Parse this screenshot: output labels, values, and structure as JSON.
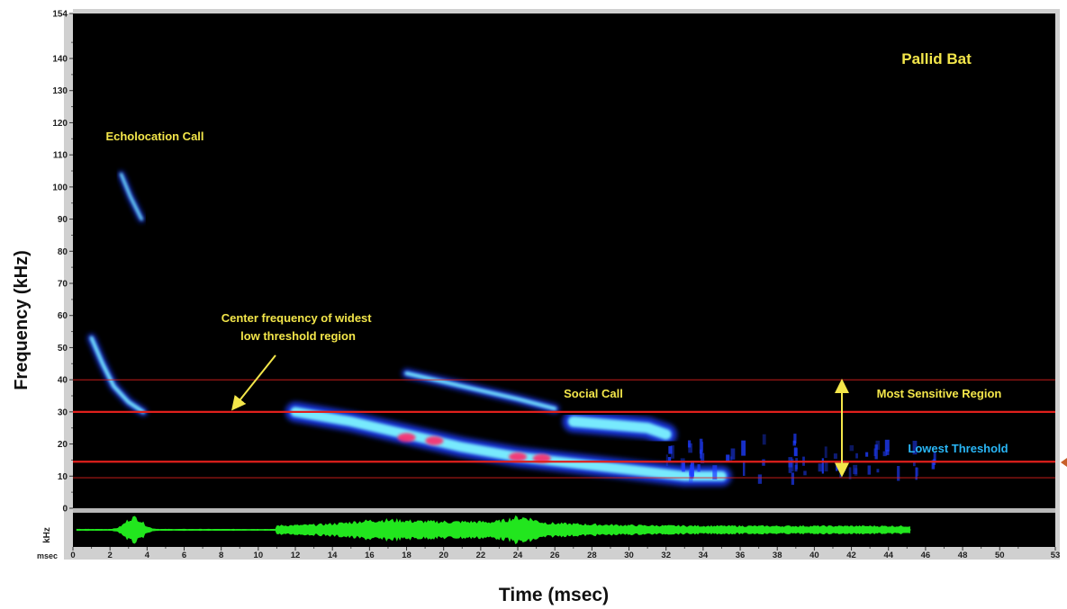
{
  "chart_data": {
    "type": "spectrogram",
    "title": "Pallid Bat",
    "xlabel": "Time (msec)",
    "ylabel": "Frequency (kHz)",
    "xlim": [
      0,
      53
    ],
    "ylim": [
      0,
      154
    ],
    "x_ticks": [
      "0",
      "2",
      "4",
      "6",
      "8",
      "10",
      "12",
      "14",
      "16",
      "18",
      "20",
      "22",
      "24",
      "26",
      "28",
      "30",
      "32",
      "34",
      "36",
      "38",
      "40",
      "42",
      "44",
      "46",
      "48",
      "50",
      "53"
    ],
    "y_ticks": [
      "0",
      "10",
      "20",
      "30",
      "40",
      "50",
      "60",
      "70",
      "80",
      "90",
      "100",
      "110",
      "120",
      "130",
      "140",
      "154"
    ],
    "waveform_unit_labels": {
      "y": "kHz",
      "x": "msec"
    },
    "annotations": {
      "echolocation": "Echolocation  Call",
      "center_freq": "Center frequency  of widest low threshold region",
      "social": "Social Call",
      "sensitive": "Most Sensitive Region",
      "lowest": "Lowest Threshold"
    },
    "reference_lines_khz": [
      {
        "value": 40,
        "style": "thin"
      },
      {
        "value": 30,
        "style": "thick"
      },
      {
        "value": 14.5,
        "style": "thick"
      },
      {
        "value": 9.5,
        "style": "thin"
      }
    ],
    "sensitive_region_khz": [
      10,
      40
    ],
    "calls": [
      {
        "name": "Echolocation Call",
        "points": [
          [
            1,
            53
          ],
          [
            1.6,
            45
          ],
          [
            2.2,
            38
          ],
          [
            3,
            33
          ],
          [
            3.8,
            30
          ]
        ]
      },
      {
        "name": "Echolocation harmonic",
        "points": [
          [
            2.6,
            104
          ],
          [
            3.1,
            97
          ],
          [
            3.7,
            90
          ]
        ]
      },
      {
        "name": "Social Call",
        "points": [
          [
            12,
            30
          ],
          [
            15,
            27
          ],
          [
            18,
            23
          ],
          [
            21,
            19
          ],
          [
            24,
            16
          ],
          [
            27,
            14
          ],
          [
            30,
            12
          ],
          [
            33,
            10
          ],
          [
            35,
            10
          ]
        ]
      },
      {
        "name": "Social Call upper band",
        "points": [
          [
            27,
            27
          ],
          [
            29,
            26
          ],
          [
            31,
            25
          ],
          [
            32,
            23
          ]
        ]
      },
      {
        "name": "Social Call harmonic",
        "points": [
          [
            18,
            42
          ],
          [
            21,
            38
          ],
          [
            24,
            34
          ],
          [
            26,
            31
          ]
        ]
      }
    ],
    "hotspots_khz": [
      [
        18,
        22
      ],
      [
        19.5,
        21
      ],
      [
        24,
        16
      ],
      [
        25.3,
        15.5
      ]
    ],
    "colors": {
      "background": "#000000",
      "reference_line": "#e0201c",
      "annotation_text": "#f3e64a",
      "lowest_text": "#29b6f6",
      "arrow": "#f3e64a",
      "waveform": "#22e61e",
      "spectrogram_core": "#7ef4ff",
      "spectrogram_edge": "#1e3cff",
      "hotspot": "#ff2a6a"
    }
  }
}
